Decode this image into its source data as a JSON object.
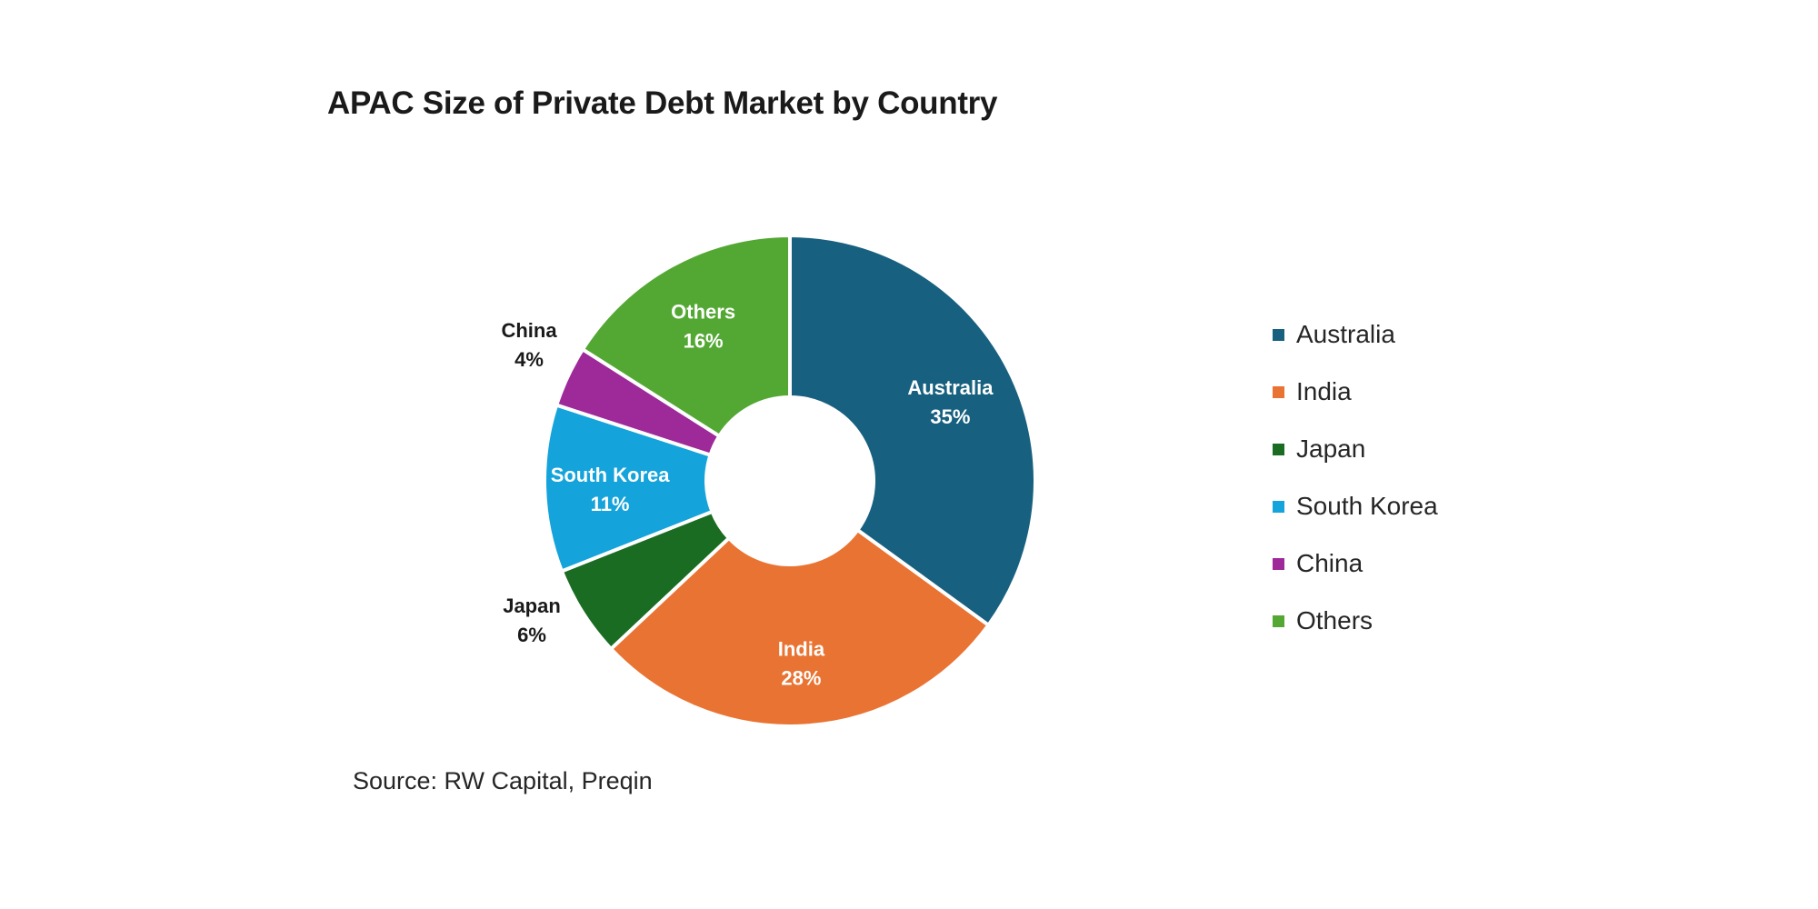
{
  "chart_data": {
    "type": "pie",
    "title": "APAC Size of Private Debt Market by Country",
    "source": "Source: RW Capital, Preqin",
    "unit": "%",
    "donut": true,
    "legend_position": "right",
    "slices": [
      {
        "label": "Australia",
        "value": 35,
        "value_label": "35%",
        "color": "#17607F",
        "label_placement": "inside",
        "label_color": "#FFFFFF"
      },
      {
        "label": "India",
        "value": 28,
        "value_label": "28%",
        "color": "#E97332",
        "label_placement": "inside",
        "label_color": "#FFFFFF"
      },
      {
        "label": "Japan",
        "value": 6,
        "value_label": "6%",
        "color": "#1A6C22",
        "label_placement": "outside",
        "label_color": "#1A1A1A"
      },
      {
        "label": "South Korea",
        "value": 11,
        "value_label": "11%",
        "color": "#14A3DA",
        "label_placement": "inside",
        "label_color": "#FFFFFF"
      },
      {
        "label": "China",
        "value": 4,
        "value_label": "4%",
        "color": "#9E2A99",
        "label_placement": "outside",
        "label_color": "#1A1A1A"
      },
      {
        "label": "Others",
        "value": 16,
        "value_label": "16%",
        "color": "#53A833",
        "label_placement": "inside",
        "label_color": "#FFFFFF"
      }
    ]
  }
}
